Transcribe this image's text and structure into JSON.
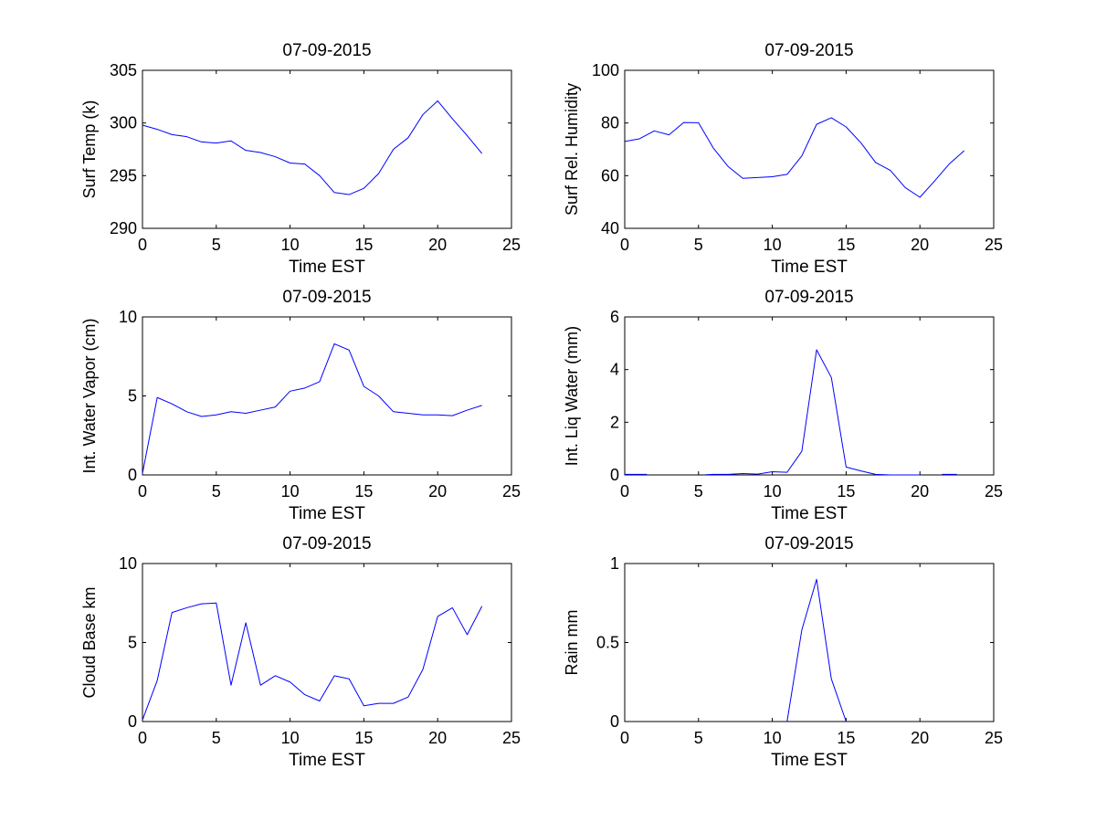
{
  "chart_data": [
    {
      "type": "line",
      "title": "07-09-2015",
      "xlabel": "Time EST",
      "ylabel": "Surf Temp (k)",
      "xlim": [
        0,
        25
      ],
      "ylim": [
        290,
        305
      ],
      "xticks": [
        0,
        5,
        10,
        15,
        20,
        25
      ],
      "yticks": [
        290,
        295,
        300,
        305
      ],
      "line_color": "#0000ff",
      "series": [
        {
          "name": "Surf Temp",
          "x": [
            0,
            1,
            2,
            3,
            4,
            5,
            6,
            7,
            8,
            9,
            10,
            11,
            12,
            13,
            14,
            15,
            16,
            17,
            18,
            19,
            20,
            21,
            22,
            23
          ],
          "y": [
            299.8,
            299.4,
            298.9,
            298.7,
            298.2,
            298.1,
            298.3,
            297.4,
            297.2,
            296.8,
            296.2,
            296.1,
            295.0,
            293.4,
            293.2,
            293.8,
            295.2,
            297.5,
            298.6,
            300.8,
            302.1,
            300.4,
            298.8,
            297.1
          ]
        }
      ]
    },
    {
      "type": "line",
      "title": "07-09-2015",
      "xlabel": "Time EST",
      "ylabel": "Surf Rel. Humidity",
      "xlim": [
        0,
        25
      ],
      "ylim": [
        40,
        100
      ],
      "xticks": [
        0,
        5,
        10,
        15,
        20,
        25
      ],
      "yticks": [
        40,
        60,
        80,
        100
      ],
      "line_color": "#0000ff",
      "series": [
        {
          "name": "Surf Rel. Humidity",
          "x": [
            0,
            1,
            2,
            3,
            4,
            5,
            6,
            7,
            8,
            9,
            10,
            11,
            12,
            13,
            14,
            15,
            16,
            17,
            18,
            19,
            20,
            21,
            22,
            23
          ],
          "y": [
            73,
            74,
            77,
            75.5,
            80.2,
            80.1,
            70.5,
            63.5,
            59,
            59.3,
            59.6,
            60.5,
            67.5,
            79.5,
            82,
            78.5,
            72.5,
            65,
            62,
            55.5,
            51.8,
            58,
            64.5,
            69.5
          ]
        }
      ]
    },
    {
      "type": "line",
      "title": "07-09-2015",
      "xlabel": "Time EST",
      "ylabel": "Int. Water Vapor (cm)",
      "xlim": [
        0,
        25
      ],
      "ylim": [
        0,
        10
      ],
      "xticks": [
        0,
        5,
        10,
        15,
        20,
        25
      ],
      "yticks": [
        0,
        5,
        10
      ],
      "line_color": "#0000ff",
      "series": [
        {
          "name": "Int. Water Vapor",
          "x": [
            0,
            1,
            2,
            3,
            4,
            5,
            6,
            7,
            8,
            9,
            10,
            11,
            12,
            13,
            14,
            15,
            16,
            17,
            18,
            19,
            20,
            21,
            22,
            23
          ],
          "y": [
            0.1,
            4.9,
            4.5,
            4.0,
            3.7,
            3.8,
            4.0,
            3.9,
            4.1,
            4.3,
            5.3,
            5.5,
            5.9,
            8.3,
            7.9,
            5.6,
            5.0,
            4.0,
            3.9,
            3.8,
            3.8,
            3.75,
            4.1,
            4.4
          ]
        }
      ]
    },
    {
      "type": "line",
      "title": "07-09-2015",
      "xlabel": "Time EST",
      "ylabel": "Int. Liq Water (mm)",
      "xlim": [
        0,
        25
      ],
      "ylim": [
        0,
        6
      ],
      "xticks": [
        0,
        5,
        10,
        15,
        20,
        25
      ],
      "yticks": [
        0,
        2,
        4,
        6
      ],
      "line_color": "#0000ff",
      "series": [
        {
          "name": "Int. Liq Water",
          "segments": [
            {
              "x": [
                0,
                1.5
              ],
              "y": [
                0.02,
                0.02
              ]
            },
            {
              "x": [
                5.5,
                6,
                7,
                8,
                9,
                10,
                11,
                12,
                13,
                14,
                15,
                16,
                17,
                18,
                19,
                20
              ],
              "y": [
                0.01,
                0.02,
                0.02,
                0.05,
                0.03,
                0.12,
                0.1,
                0.9,
                4.75,
                3.7,
                0.3,
                0.15,
                0.02,
                0.0,
                0.0,
                0.0
              ]
            },
            {
              "x": [
                21.5,
                22.5
              ],
              "y": [
                0.02,
                0.02
              ]
            }
          ]
        }
      ]
    },
    {
      "type": "line",
      "title": "07-09-2015",
      "xlabel": "Time EST",
      "ylabel": "Cloud Base km",
      "xlim": [
        0,
        25
      ],
      "ylim": [
        0,
        10
      ],
      "xticks": [
        0,
        5,
        10,
        15,
        20,
        25
      ],
      "yticks": [
        0,
        5,
        10
      ],
      "line_color": "#0000ff",
      "series": [
        {
          "name": "Cloud Base",
          "x": [
            0,
            1,
            2,
            3,
            4,
            5,
            6,
            7,
            8,
            9,
            10,
            11,
            12,
            13,
            14,
            15,
            16,
            17,
            18,
            19,
            20,
            21,
            22,
            23
          ],
          "y": [
            0.1,
            2.6,
            6.9,
            7.2,
            7.45,
            7.5,
            2.3,
            6.25,
            2.3,
            2.9,
            2.5,
            1.7,
            1.3,
            2.9,
            2.7,
            1.0,
            1.15,
            1.15,
            1.55,
            3.3,
            6.65,
            7.2,
            5.5,
            7.3
          ]
        }
      ]
    },
    {
      "type": "line",
      "title": "07-09-2015",
      "xlabel": "Time EST",
      "ylabel": "Rain mm",
      "xlim": [
        0,
        25
      ],
      "ylim": [
        0,
        1
      ],
      "xticks": [
        0,
        5,
        10,
        15,
        20,
        25
      ],
      "yticks": [
        0,
        0.5,
        1
      ],
      "ytick_labels": [
        "0",
        "0.5",
        "1"
      ],
      "line_color": "#0000ff",
      "series": [
        {
          "name": "Rain",
          "x": [
            11,
            12,
            13,
            14,
            15
          ],
          "y": [
            0.0,
            0.58,
            0.9,
            0.27,
            0.0
          ]
        }
      ]
    }
  ]
}
